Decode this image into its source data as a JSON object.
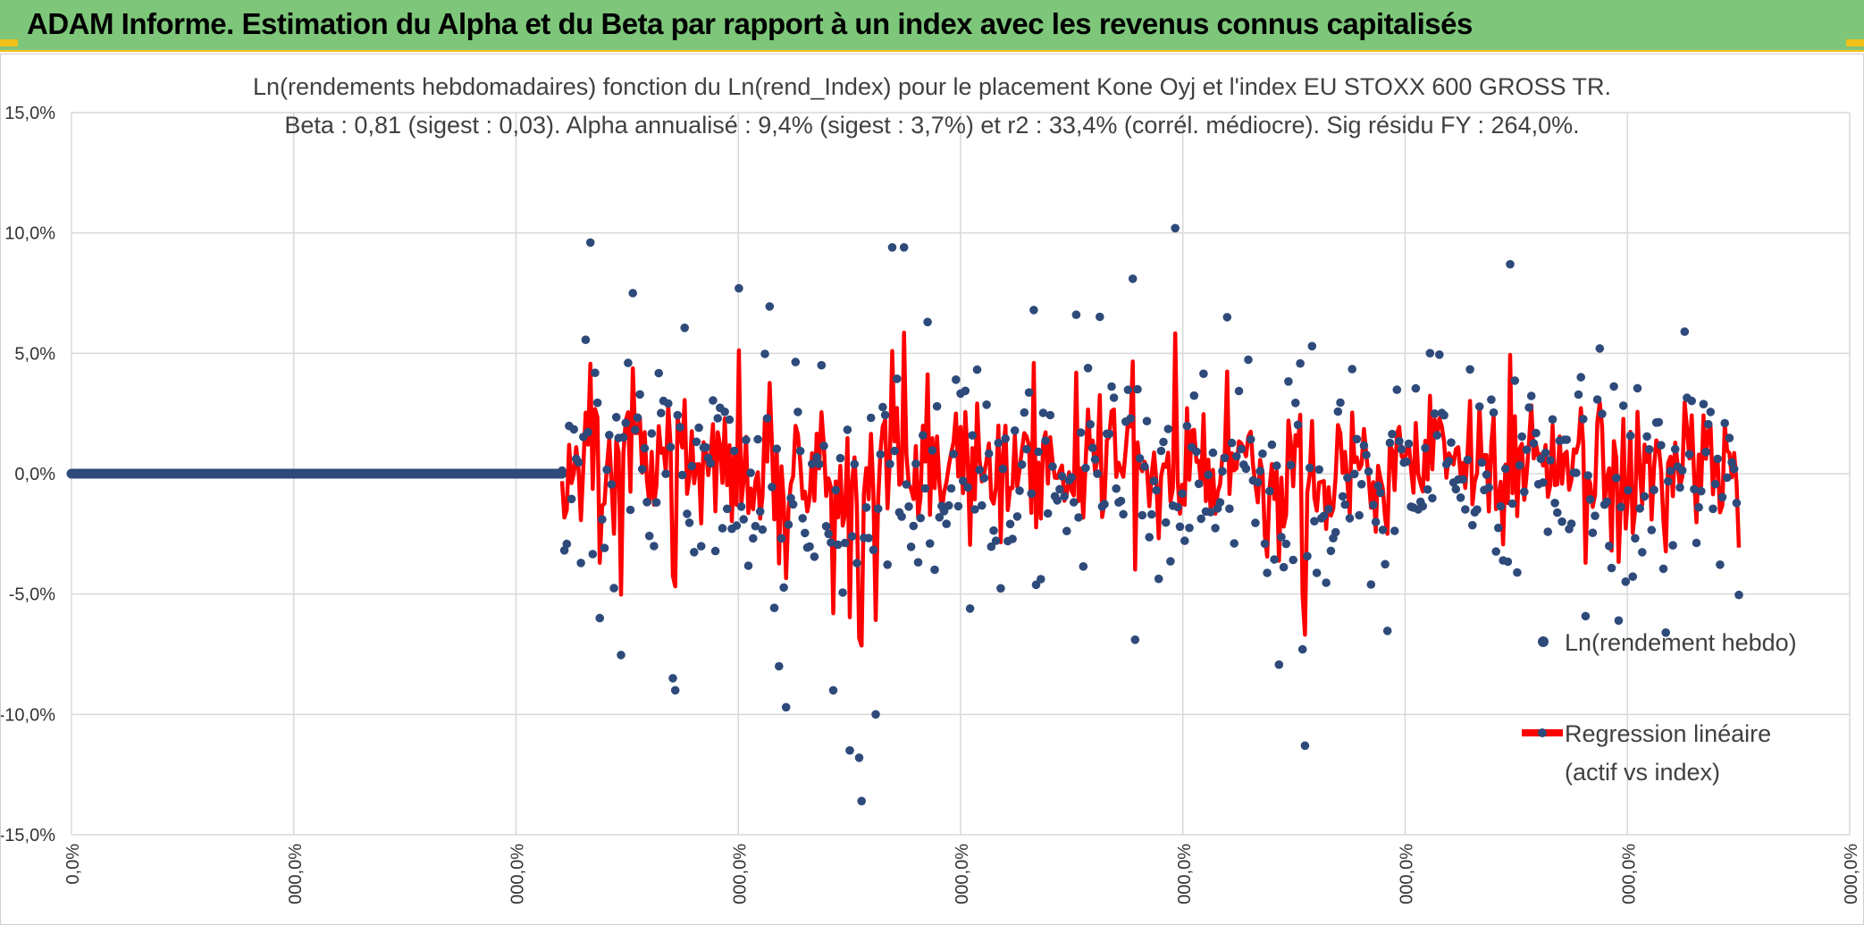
{
  "header": {
    "title": "ADAM Informe. Estimation du Alpha et du Beta par rapport à un index avec les revenus connus capitalisés"
  },
  "colors": {
    "header_bg": "#7dc67a",
    "accent_yellow": "#f2c21a",
    "scatter": "#2e4a7a",
    "regression": "#ff0000",
    "grid": "#d9d9d9"
  },
  "chart_data": {
    "type": "scatter",
    "title": [
      "Ln(rendements hebdomadaires) fonction du Ln(rend_Index) pour le placement Kone Oyj et l'index EU STOXX 600 GROSS TR.",
      "Beta : 0,81 (sigest : 0,03). Alpha annualisé : 9,4% (sigest : 3,7%) et r2 : 33,4% (corrél. médiocre). Sig résidu FY : 264,0%."
    ],
    "y_ticks": [
      "15,0%",
      "10,0%",
      "5,0%",
      "0,0%",
      "-5,0%",
      "-10,0%",
      "-15,0%"
    ],
    "x_ticks": [
      "0,0%",
      "000,0%",
      "000,0%",
      "000,0%",
      "000,0%",
      "000,0%",
      "000,0%",
      "000,0%",
      "000,0%"
    ],
    "ylim": [
      -15,
      15
    ],
    "y_unit": "%",
    "grid": true,
    "legend_position": "right",
    "series": [
      {
        "name": "Ln(rendement hebdo)",
        "kind": "scatter"
      },
      {
        "name": "Regression linéaire (actif vs index)",
        "kind": "line"
      }
    ],
    "legend": {
      "scatter_label": "Ln(rendement hebdo)",
      "line_label_1": "Regression linéaire",
      "line_label_2": "(actif vs index)"
    },
    "flat_segment": {
      "y": 0.0,
      "count": 210
    },
    "observations": {
      "count": 500,
      "y_min": -13.6,
      "y_max": 10.2,
      "spread": 2.3
    },
    "outliers": [
      [
        12,
        9.6
      ],
      [
        30,
        7.5
      ],
      [
        28,
        4.6
      ],
      [
        47,
        -8.5
      ],
      [
        48,
        -9.0
      ],
      [
        75,
        7.7
      ],
      [
        95,
        -9.7
      ],
      [
        92,
        -8.0
      ],
      [
        115,
        -9.0
      ],
      [
        122,
        -11.5
      ],
      [
        126,
        -11.8
      ],
      [
        127,
        -13.6
      ],
      [
        133,
        -10.0
      ],
      [
        140,
        9.4
      ],
      [
        145,
        9.4
      ],
      [
        155,
        6.3
      ],
      [
        200,
        6.8
      ],
      [
        218,
        6.6
      ],
      [
        243,
        -6.9
      ],
      [
        260,
        10.2
      ],
      [
        282,
        6.5
      ],
      [
        314,
        -7.3
      ],
      [
        315,
        -11.3
      ],
      [
        318,
        5.3
      ],
      [
        402,
        8.7
      ],
      [
        440,
        5.2
      ],
      [
        448,
        -6.1
      ],
      [
        468,
        -6.6
      ],
      [
        476,
        5.9
      ]
    ]
  }
}
